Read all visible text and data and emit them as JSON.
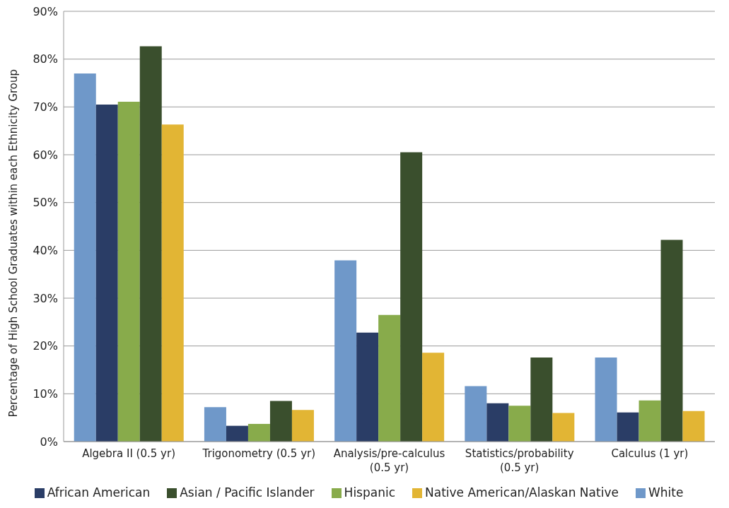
{
  "chart_data": {
    "type": "bar",
    "ylabel": "Percentage of High School Graduates within each Ethnicity Group",
    "categories": [
      "Algebra II (0.5 yr)",
      "Trigonometry (0.5 yr)",
      "Analysis/pre-calculus (0.5 yr)",
      "Statistics/probability (0.5 yr)",
      "Calculus (1 yr)"
    ],
    "series": [
      {
        "name": "White",
        "color": "#6f98c9",
        "values": [
          77.0,
          7.2,
          37.9,
          11.6,
          17.6
        ]
      },
      {
        "name": "African American",
        "color": "#2a3d66",
        "values": [
          70.5,
          3.3,
          22.8,
          8.0,
          6.1
        ]
      },
      {
        "name": "Hispanic",
        "color": "#88ab4b",
        "values": [
          71.1,
          3.7,
          26.5,
          7.5,
          8.6
        ]
      },
      {
        "name": "Asian / Pacific Islander",
        "color": "#3a4f2d",
        "values": [
          82.7,
          8.5,
          60.5,
          17.6,
          42.2
        ]
      },
      {
        "name": "Native American/Alaskan Native",
        "color": "#e2b534",
        "values": [
          66.3,
          6.6,
          18.6,
          6.0,
          6.4
        ]
      }
    ],
    "ylim": [
      0,
      90
    ],
    "yticks": [
      {
        "value": 0,
        "label": "0%"
      },
      {
        "value": 10,
        "label": "10%"
      },
      {
        "value": 20,
        "label": "20%"
      },
      {
        "value": 30,
        "label": "30%"
      },
      {
        "value": 40,
        "label": "40%"
      },
      {
        "value": 50,
        "label": "50%"
      },
      {
        "value": 60,
        "label": "60%"
      },
      {
        "value": 70,
        "label": "70%"
      },
      {
        "value": 80,
        "label": "80%"
      },
      {
        "value": 90,
        "label": "90%"
      }
    ],
    "grid": "y",
    "legend": "bottom"
  }
}
